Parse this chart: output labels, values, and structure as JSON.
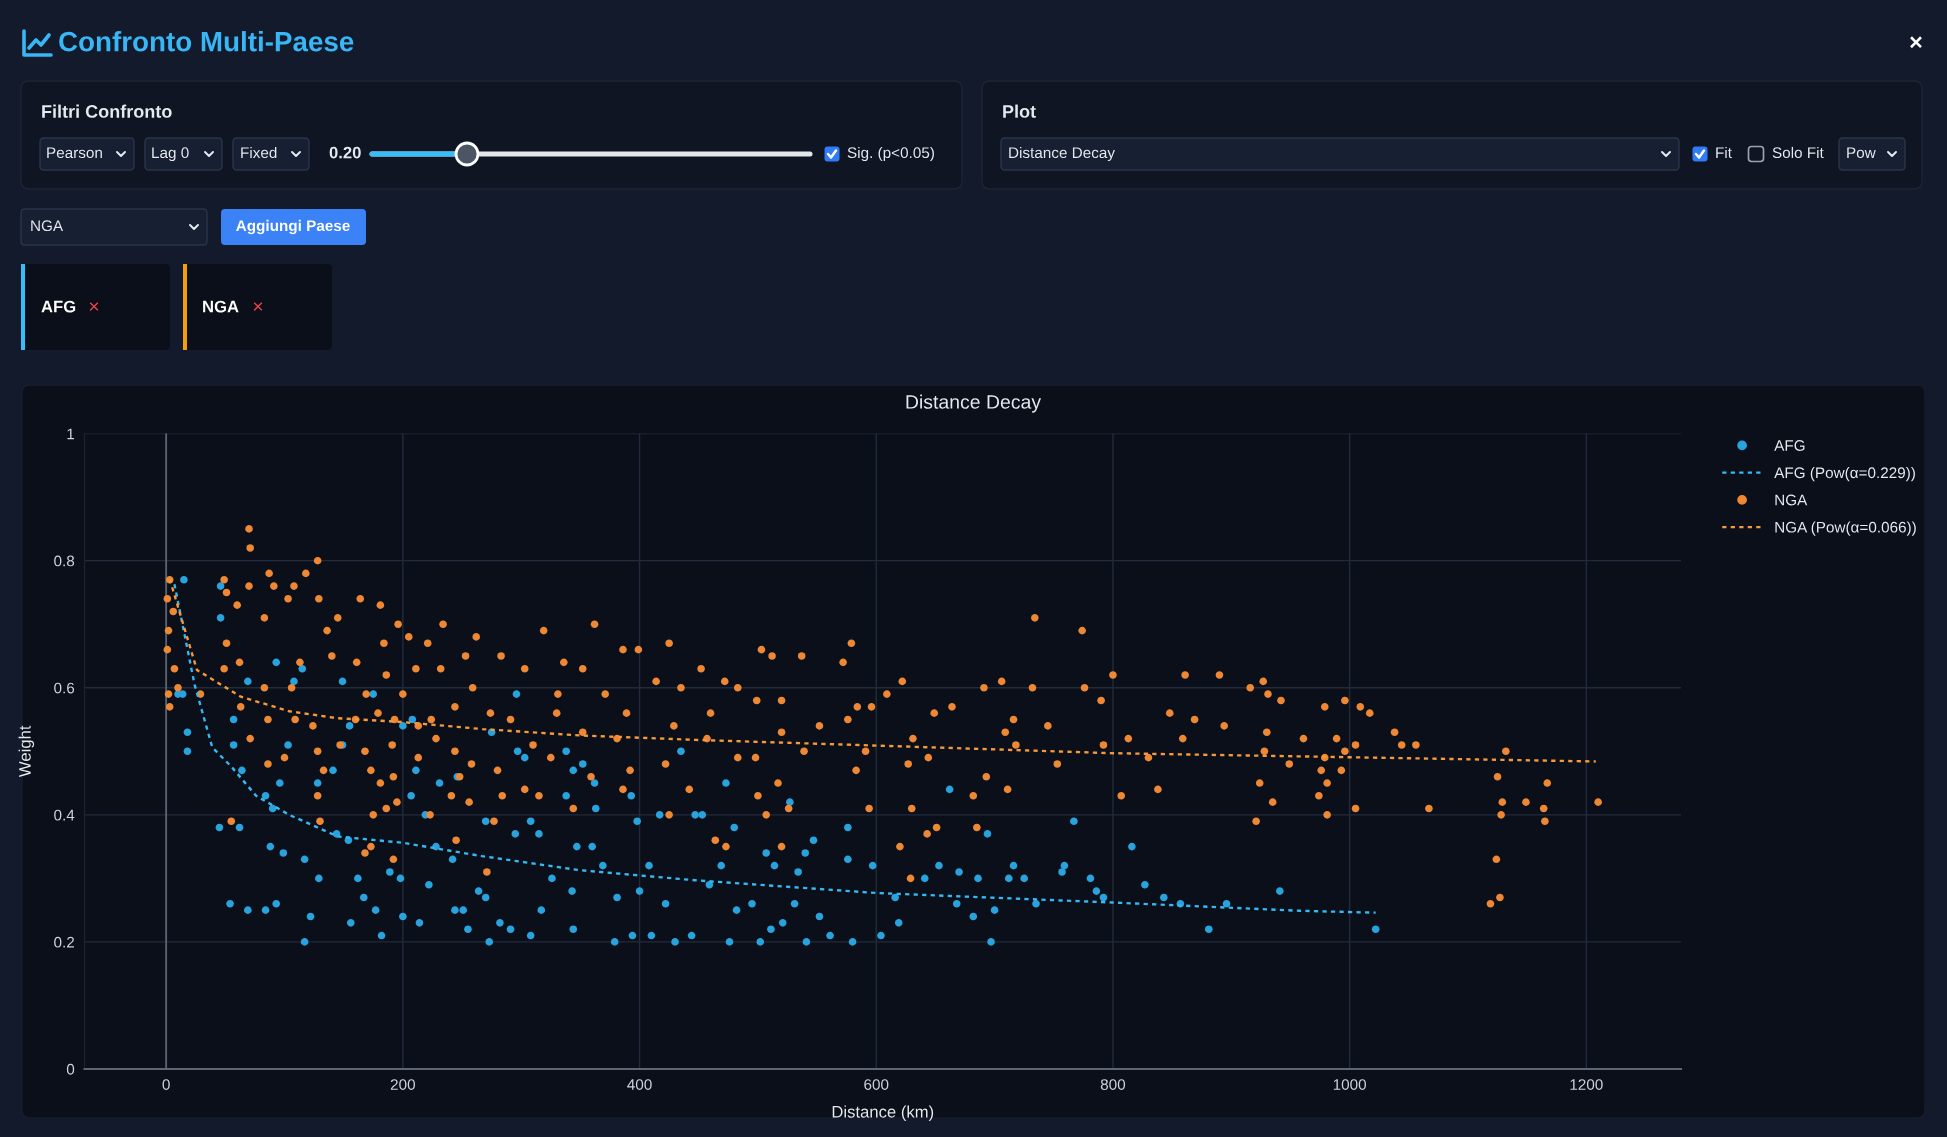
{
  "chart_data": [
    {
      "type": "other",
      "title": "Confronto Multi-Paese",
      "annotations": [
        "×",
        "Filtri Confronto",
        "Pearson",
        "Lag 0",
        "Fixed",
        "0.20",
        "Sig. (p<0.05)",
        "Plot",
        "Distance Decay",
        "Fit",
        "Solo Fit",
        "Pow",
        "NGA",
        "Aggiungi Paese",
        "AFG",
        "×",
        "NGA",
        "×"
      ]
    },
    {
      "type": "scatter",
      "title": "Distance Decay",
      "xlabel": "Distance (km)",
      "ylabel": "Weight",
      "xlim": [
        -69,
        1280
      ],
      "ylim": [
        0,
        1
      ],
      "xticks": [
        0,
        200,
        400,
        600,
        800,
        1000,
        1200
      ],
      "yticks": [
        0,
        0.2,
        0.4,
        0.6,
        0.8,
        1
      ],
      "grid": true,
      "legend": "top right",
      "ref_lines": [
        {
          "axis": "x",
          "value": 0,
          "color": "#5c636f"
        }
      ],
      "series": [
        {
          "name": "AFG",
          "type": "scatter",
          "marker": "circle",
          "color": "#29a3dd",
          "x": [
            15,
            46,
            46,
            10,
            14,
            18,
            18,
            45,
            54,
            69,
            62,
            84,
            93,
            88,
            99,
            117,
            122,
            117,
            129,
            57,
            57,
            69,
            64,
            84,
            90,
            93,
            115,
            108,
            103,
            96,
            128,
            141,
            149,
            149,
            155,
            144,
            154,
            162,
            156,
            167,
            177,
            182,
            175,
            189,
            198,
            200,
            214,
            208,
            200,
            211,
            207,
            219,
            228,
            222,
            231,
            242,
            244,
            246,
            251,
            255,
            264,
            270,
            273,
            282,
            270,
            275,
            291,
            296,
            297,
            303,
            295,
            308,
            308,
            315,
            317,
            326,
            338,
            344,
            352,
            362,
            363,
            338,
            347,
            360,
            344,
            343,
            369,
            381,
            379,
            394,
            393,
            398,
            400,
            410,
            408,
            430,
            435,
            422,
            417,
            447,
            453,
            473,
            480,
            444,
            459,
            469,
            476,
            482,
            495,
            502,
            507,
            511,
            514,
            521,
            527,
            531,
            534,
            541,
            540,
            547,
            552,
            561,
            576,
            576,
            580,
            597,
            604,
            616,
            619,
            641,
            653,
            662,
            668,
            670,
            682,
            686,
            694,
            697,
            700,
            712,
            716,
            725,
            735,
            757,
            759,
            767,
            781,
            786,
            792,
            816,
            827,
            843,
            857,
            881,
            896,
            941,
            1022
          ],
          "values": [
            0.77,
            0.76,
            0.71,
            0.59,
            0.59,
            0.53,
            0.5,
            0.38,
            0.26,
            0.25,
            0.38,
            0.25,
            0.26,
            0.35,
            0.34,
            0.2,
            0.24,
            0.33,
            0.3,
            0.55,
            0.51,
            0.61,
            0.47,
            0.43,
            0.41,
            0.64,
            0.63,
            0.61,
            0.51,
            0.45,
            0.45,
            0.47,
            0.51,
            0.61,
            0.54,
            0.37,
            0.36,
            0.3,
            0.23,
            0.27,
            0.25,
            0.21,
            0.59,
            0.31,
            0.3,
            0.24,
            0.23,
            0.55,
            0.54,
            0.47,
            0.43,
            0.4,
            0.35,
            0.29,
            0.45,
            0.33,
            0.25,
            0.46,
            0.25,
            0.22,
            0.28,
            0.27,
            0.2,
            0.23,
            0.39,
            0.53,
            0.22,
            0.59,
            0.5,
            0.49,
            0.37,
            0.39,
            0.21,
            0.37,
            0.25,
            0.3,
            0.5,
            0.47,
            0.48,
            0.45,
            0.41,
            0.43,
            0.35,
            0.35,
            0.22,
            0.28,
            0.32,
            0.27,
            0.2,
            0.21,
            0.43,
            0.39,
            0.28,
            0.21,
            0.32,
            0.2,
            0.5,
            0.26,
            0.4,
            0.4,
            0.4,
            0.45,
            0.38,
            0.21,
            0.29,
            0.32,
            0.2,
            0.25,
            0.26,
            0.2,
            0.34,
            0.22,
            0.32,
            0.23,
            0.42,
            0.26,
            0.31,
            0.2,
            0.34,
            0.36,
            0.24,
            0.21,
            0.38,
            0.33,
            0.2,
            0.32,
            0.21,
            0.27,
            0.23,
            0.3,
            0.32,
            0.44,
            0.26,
            0.31,
            0.24,
            0.3,
            0.37,
            0.2,
            0.25,
            0.3,
            0.32,
            0.3,
            0.26,
            0.31,
            0.32,
            0.39,
            0.3,
            0.28,
            0.27,
            0.35,
            0.29,
            0.27,
            0.26,
            0.22,
            0.26,
            0.28,
            0.22
          ]
        },
        {
          "name": "AFG (Pow(α=0.229))",
          "type": "line",
          "color": "#35b9f2",
          "line_style": "dotted",
          "x": [
            7,
            24,
            39,
            55,
            76,
            104,
            145,
            200,
            267,
            349,
            447,
            600,
            800,
            958,
            1022
          ],
          "values": [
            0.763,
            0.605,
            0.506,
            0.476,
            0.43,
            0.4,
            0.366,
            0.356,
            0.335,
            0.313,
            0.297,
            0.277,
            0.262,
            0.249,
            0.246
          ]
        },
        {
          "name": "NGA",
          "type": "scatter",
          "marker": "circle",
          "color": "#ee8834",
          "x": [
            3,
            1,
            6,
            2,
            1,
            7,
            10,
            2,
            3,
            29,
            70,
            71,
            49,
            51,
            128,
            118,
            87,
            91,
            70,
            60,
            83,
            103,
            108,
            129,
            164,
            181,
            145,
            136,
            196,
            205,
            221,
            234,
            262,
            319,
            362,
            386,
            399,
            336,
            352,
            371,
            303,
            283,
            253,
            232,
            211,
            184,
            186,
            161,
            140,
            113,
            106,
            83,
            62,
            49,
            51,
            63,
            86,
            71,
            86,
            100,
            109,
            124,
            128,
            133,
            128,
            130,
            55,
            147,
            160,
            169,
            179,
            168,
            173,
            181,
            175,
            173,
            168,
            186,
            195,
            192,
            191,
            193,
            200,
            192,
            213,
            224,
            228,
            213,
            223,
            244,
            244,
            248,
            241,
            256,
            245,
            258,
            259,
            274,
            271,
            280,
            277,
            284,
            291,
            303,
            315,
            325,
            310,
            330,
            331,
            359,
            344,
            352,
            381,
            389,
            386,
            392,
            425,
            414,
            435,
            429,
            452,
            460,
            472,
            457,
            422,
            442,
            425,
            464,
            473,
            483,
            483,
            503,
            512,
            499,
            520,
            520,
            498,
            517,
            500,
            507,
            526,
            520,
            537,
            539,
            552,
            572,
            579,
            576,
            584,
            596,
            591,
            583,
            594,
            609,
            622,
            627,
            631,
            630,
            620,
            629,
            643,
            651,
            649,
            644,
            664,
            682,
            685,
            693,
            691,
            706,
            709,
            716,
            711,
            718,
            732,
            734,
            745,
            753,
            774,
            776,
            790,
            792,
            800,
            807,
            813,
            830,
            838,
            848,
            859,
            861,
            869,
            890,
            894,
            916,
            921,
            924,
            927,
            928,
            930,
            931,
            935,
            942,
            949,
            961,
            979,
            996,
            1009,
            1017,
            989,
            996,
            1005,
            979,
            976,
            993,
            974,
            981,
            981,
            1005,
            1038,
            1044,
            1056,
            1067,
            1132,
            1125,
            1129,
            1128,
            1149,
            1164,
            1165,
            1167,
            1210,
            1124,
            1119,
            1127
          ],
          "values": [
            0.77,
            0.74,
            0.72,
            0.69,
            0.66,
            0.63,
            0.6,
            0.59,
            0.57,
            0.59,
            0.85,
            0.82,
            0.77,
            0.75,
            0.8,
            0.78,
            0.78,
            0.76,
            0.76,
            0.73,
            0.71,
            0.74,
            0.76,
            0.74,
            0.74,
            0.73,
            0.71,
            0.69,
            0.7,
            0.68,
            0.67,
            0.7,
            0.68,
            0.69,
            0.7,
            0.66,
            0.66,
            0.64,
            0.63,
            0.59,
            0.63,
            0.65,
            0.65,
            0.63,
            0.63,
            0.67,
            0.62,
            0.64,
            0.65,
            0.64,
            0.6,
            0.6,
            0.64,
            0.63,
            0.67,
            0.57,
            0.55,
            0.52,
            0.48,
            0.49,
            0.55,
            0.54,
            0.5,
            0.47,
            0.43,
            0.39,
            0.39,
            0.51,
            0.55,
            0.59,
            0.56,
            0.5,
            0.47,
            0.45,
            0.4,
            0.35,
            0.34,
            0.41,
            0.42,
            0.46,
            0.51,
            0.55,
            0.59,
            0.33,
            0.54,
            0.55,
            0.52,
            0.49,
            0.4,
            0.57,
            0.5,
            0.46,
            0.43,
            0.42,
            0.36,
            0.48,
            0.6,
            0.56,
            0.31,
            0.47,
            0.39,
            0.43,
            0.55,
            0.44,
            0.43,
            0.49,
            0.51,
            0.56,
            0.59,
            0.46,
            0.41,
            0.53,
            0.52,
            0.56,
            0.44,
            0.47,
            0.67,
            0.61,
            0.6,
            0.54,
            0.63,
            0.56,
            0.61,
            0.52,
            0.48,
            0.44,
            0.4,
            0.36,
            0.35,
            0.49,
            0.6,
            0.66,
            0.65,
            0.58,
            0.58,
            0.53,
            0.49,
            0.45,
            0.43,
            0.4,
            0.41,
            0.35,
            0.65,
            0.5,
            0.54,
            0.64,
            0.67,
            0.55,
            0.57,
            0.57,
            0.5,
            0.47,
            0.41,
            0.59,
            0.61,
            0.48,
            0.52,
            0.41,
            0.35,
            0.3,
            0.37,
            0.38,
            0.56,
            0.49,
            0.57,
            0.43,
            0.38,
            0.46,
            0.6,
            0.61,
            0.53,
            0.55,
            0.44,
            0.51,
            0.6,
            0.71,
            0.54,
            0.48,
            0.69,
            0.6,
            0.58,
            0.51,
            0.62,
            0.43,
            0.52,
            0.49,
            0.44,
            0.56,
            0.52,
            0.62,
            0.55,
            0.62,
            0.54,
            0.6,
            0.39,
            0.45,
            0.61,
            0.5,
            0.53,
            0.59,
            0.42,
            0.58,
            0.48,
            0.52,
            0.57,
            0.58,
            0.57,
            0.56,
            0.52,
            0.5,
            0.51,
            0.49,
            0.47,
            0.47,
            0.43,
            0.45,
            0.4,
            0.41,
            0.53,
            0.51,
            0.51,
            0.41,
            0.5,
            0.46,
            0.42,
            0.4,
            0.42,
            0.41,
            0.39,
            0.45,
            0.42,
            0.33,
            0.26,
            0.27
          ]
        },
        {
          "name": "NGA (Pow(α=0.066))",
          "type": "line",
          "color": "#f59a3b",
          "line_style": "dotted",
          "x": [
            3,
            26,
            63,
            104,
            145,
            200,
            267,
            349,
            447,
            600,
            800,
            958,
            1208
          ],
          "values": [
            0.771,
            0.628,
            0.586,
            0.563,
            0.552,
            0.546,
            0.535,
            0.525,
            0.518,
            0.509,
            0.497,
            0.492,
            0.484
          ]
        }
      ]
    }
  ]
}
